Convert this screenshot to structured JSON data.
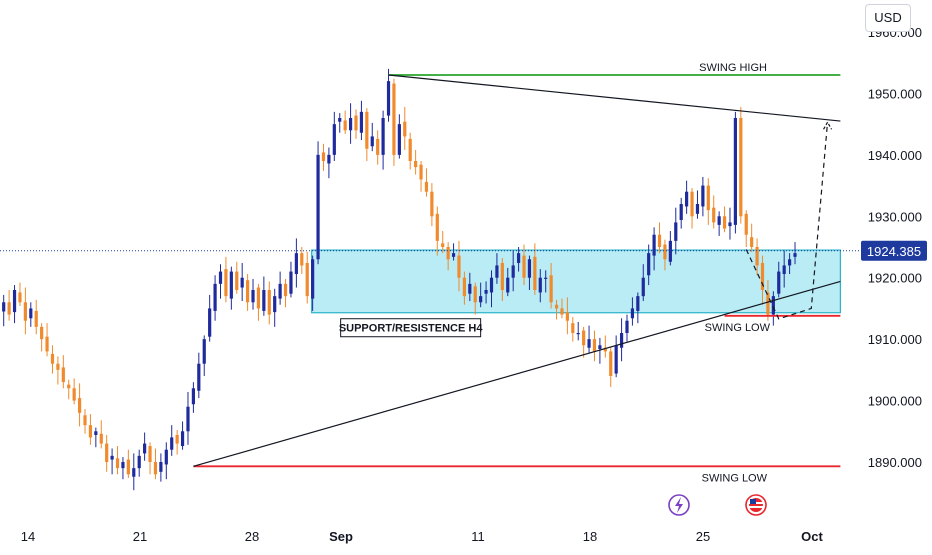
{
  "currency": "USD",
  "colors": {
    "up": "#1f2a9c",
    "down": "#f08a2c",
    "zone_fill": "#b9ecf5",
    "zone_stroke": "#2ab3c9",
    "swing_high": "#2aa52e",
    "swing_low": "#e8262c",
    "trend": "#131722",
    "price_tag": "#1f3a9e",
    "event_icon": "#7b3fc2"
  },
  "chart_data": {
    "type": "candlestick",
    "x_tick_labels": [
      "14",
      "21",
      "28",
      "Sep",
      "11",
      "18",
      "25",
      "Oct"
    ],
    "y_ticks": [
      1890,
      1900,
      1910,
      1920,
      1930,
      1940,
      1950,
      1960
    ],
    "y_tick_labels": [
      "1890.000",
      "1900.000",
      "1910.000",
      "1920.000",
      "1930.000",
      "1940.000",
      "1950.000",
      "1960.000"
    ],
    "ylim": [
      1883.3,
      1965
    ],
    "current_price": 1924.385,
    "current_price_label": "1924.385",
    "candles_start_index": 0,
    "closes": [
      1916,
      1914,
      1918,
      1916,
      1913,
      1915,
      1912,
      1910,
      1908,
      1906,
      1905,
      1903,
      1902,
      1900,
      1898,
      1896,
      1894,
      1895,
      1893,
      1890,
      1891,
      1889,
      1890,
      1888,
      1889,
      1891,
      1893,
      1890,
      1888,
      1890,
      1892,
      1894,
      1893,
      1895,
      1899,
      1902,
      1906,
      1910,
      1915,
      1919,
      1921,
      1917,
      1921,
      1918,
      1920,
      1916,
      1918,
      1915,
      1918,
      1914,
      1917,
      1919,
      1917,
      1921,
      1924,
      1922,
      1917,
      1923,
      1940,
      1939,
      1940,
      1945,
      1946,
      1944,
      1946,
      1944,
      1947,
      1941,
      1943,
      1940,
      1946,
      1952,
      1940,
      1945,
      1943,
      1939,
      1938,
      1936,
      1934,
      1930,
      1926,
      1925,
      1923,
      1924,
      1920,
      1917,
      1919,
      1916,
      1917,
      1918,
      1920,
      1922,
      1918,
      1920,
      1922,
      1924,
      1920,
      1923,
      1918,
      1920,
      1920,
      1916,
      1915,
      1914,
      1913,
      1911,
      1911,
      1909,
      1910,
      1908,
      1909,
      1908,
      1904,
      1909,
      1911,
      1913,
      1915,
      1917,
      1920,
      1924,
      1927,
      1925,
      1923,
      1926,
      1929,
      1932,
      1934,
      1930,
      1932,
      1935,
      1931,
      1929,
      1930,
      1928,
      1929,
      1946,
      1930,
      1927,
      1925,
      1922,
      1918,
      1914,
      1917,
      1921,
      1922,
      1923,
      1924
    ],
    "zone": {
      "label": "SUPPORT/RESISTENCE H4",
      "low": 1914.3,
      "high": 1924.5,
      "start_index": 57,
      "end_index": 154
    },
    "levels": [
      {
        "name": "swing_high",
        "label": "SWING HIGH",
        "price": 1953.0,
        "start_index": 71,
        "end_index": 154
      },
      {
        "name": "swing_low_recent",
        "label": "SWING LOW",
        "price": 1913.8,
        "start_index": 133,
        "end_index": 154
      },
      {
        "name": "swing_low_major",
        "label": "SWING LOW",
        "price": 1889.3,
        "start_index": 35,
        "end_index": 154
      }
    ],
    "trendlines": [
      {
        "name": "upper",
        "from": [
          71,
          1953.0
        ],
        "to": [
          154,
          1945.5
        ]
      },
      {
        "name": "lower",
        "from": [
          35,
          1889.3
        ],
        "to": [
          154,
          1919.4
        ]
      }
    ],
    "projection": [
      [
        137,
        1924.6
      ],
      [
        143,
        1913.3
      ],
      [
        149,
        1915.0
      ],
      [
        152,
        1945.3
      ]
    ]
  }
}
